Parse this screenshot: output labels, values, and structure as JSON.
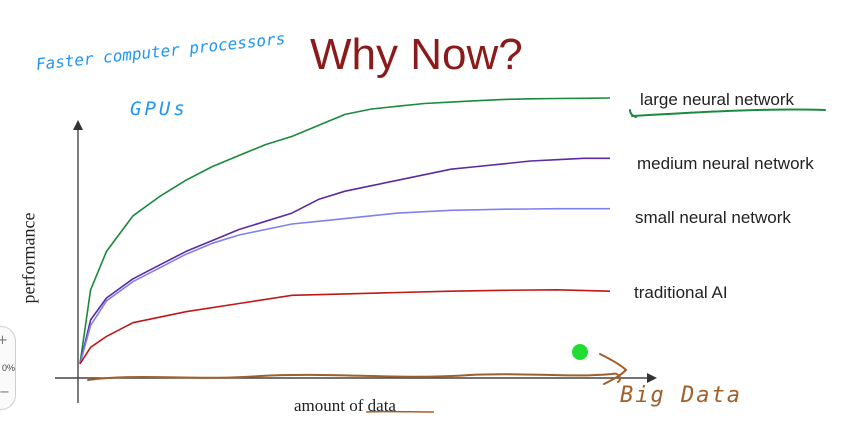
{
  "title": "Why Now?",
  "annotations": {
    "processors": "Faster computer processors",
    "gpus": "GPUs",
    "big_data": "Big Data"
  },
  "zoom": {
    "zoom_in_label": "+",
    "zoom_value": "0%",
    "zoom_out_label": "−"
  },
  "colors": {
    "title": "#8b1a1a",
    "large": "#1a8a3c",
    "medium": "#5a2ca0",
    "small": "#8080f0",
    "traditional": "#c01818",
    "marker": "#22dd33",
    "handwriting_blue": "#2196f3",
    "handwriting_brown": "#a0602a"
  },
  "chart_data": {
    "type": "line",
    "title": "Why Now?",
    "xlabel": "amount of data",
    "ylabel": "performance",
    "xlim": [
      0,
      100
    ],
    "ylim": [
      0,
      100
    ],
    "grid": false,
    "series": [
      {
        "name": "large neural network",
        "color": "#1a8a3c",
        "x": [
          0,
          2,
          5,
          10,
          15,
          20,
          25,
          30,
          35,
          40,
          45,
          50,
          55,
          60,
          65,
          70,
          75,
          80,
          85,
          90,
          95,
          100
        ],
        "y": [
          3,
          30,
          44,
          57,
          64,
          70,
          75,
          79,
          83,
          86,
          90,
          94,
          96,
          97,
          98,
          98.5,
          99,
          99.5,
          99.7,
          99.8,
          99.9,
          100
        ]
      },
      {
        "name": "medium neural network",
        "color": "#5a2ca0",
        "x": [
          0,
          2,
          5,
          10,
          15,
          20,
          25,
          30,
          35,
          40,
          45,
          50,
          55,
          60,
          65,
          70,
          75,
          80,
          85,
          90,
          95,
          100
        ],
        "y": [
          3,
          19,
          27,
          34,
          39,
          44,
          48,
          52,
          55,
          58,
          63,
          66,
          68,
          70,
          72,
          74,
          75,
          76,
          77,
          77.5,
          78,
          78
        ]
      },
      {
        "name": "small neural network",
        "color": "#8080f0",
        "x": [
          0,
          2,
          5,
          10,
          15,
          20,
          25,
          30,
          35,
          40,
          45,
          50,
          55,
          60,
          65,
          70,
          75,
          80,
          85,
          90,
          95,
          100
        ],
        "y": [
          3,
          17,
          26,
          33,
          38,
          43,
          47,
          50,
          52,
          54,
          55,
          56,
          57,
          58,
          58.5,
          59,
          59.2,
          59.4,
          59.5,
          59.6,
          59.6,
          59.6
        ]
      },
      {
        "name": "traditional AI",
        "color": "#c01818",
        "x": [
          0,
          2,
          5,
          10,
          20,
          30,
          40,
          50,
          60,
          70,
          80,
          90,
          100
        ],
        "y": [
          3,
          9,
          13,
          18,
          22,
          25,
          28,
          28.5,
          29,
          29.5,
          29.8,
          30,
          29.5
        ]
      }
    ]
  }
}
